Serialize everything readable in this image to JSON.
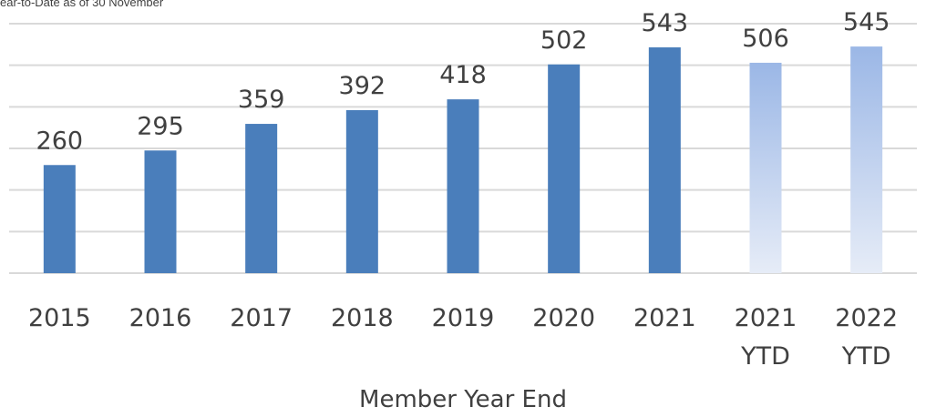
{
  "note": "ear-to-Date as of 30 November",
  "colors": {
    "bar": "#4a7ebb",
    "ytd_top": "#9bb7e6",
    "ytd_bottom": "#e6ecf7",
    "grid": "#d9d9d9",
    "text": "#404040"
  },
  "chart_data": {
    "type": "bar",
    "categories": [
      "2015",
      "2016",
      "2017",
      "2018",
      "2019",
      "2020",
      "2021",
      "2021\nYTD",
      "2022\nYTD"
    ],
    "values": [
      260,
      295,
      359,
      392,
      418,
      502,
      543,
      506,
      545
    ],
    "ytd": [
      false,
      false,
      false,
      false,
      false,
      false,
      false,
      true,
      true
    ],
    "title": "",
    "xlabel": "Member Year End",
    "ylabel": "",
    "ylim": [
      0,
      600
    ],
    "grid": true,
    "data_labels": true
  }
}
